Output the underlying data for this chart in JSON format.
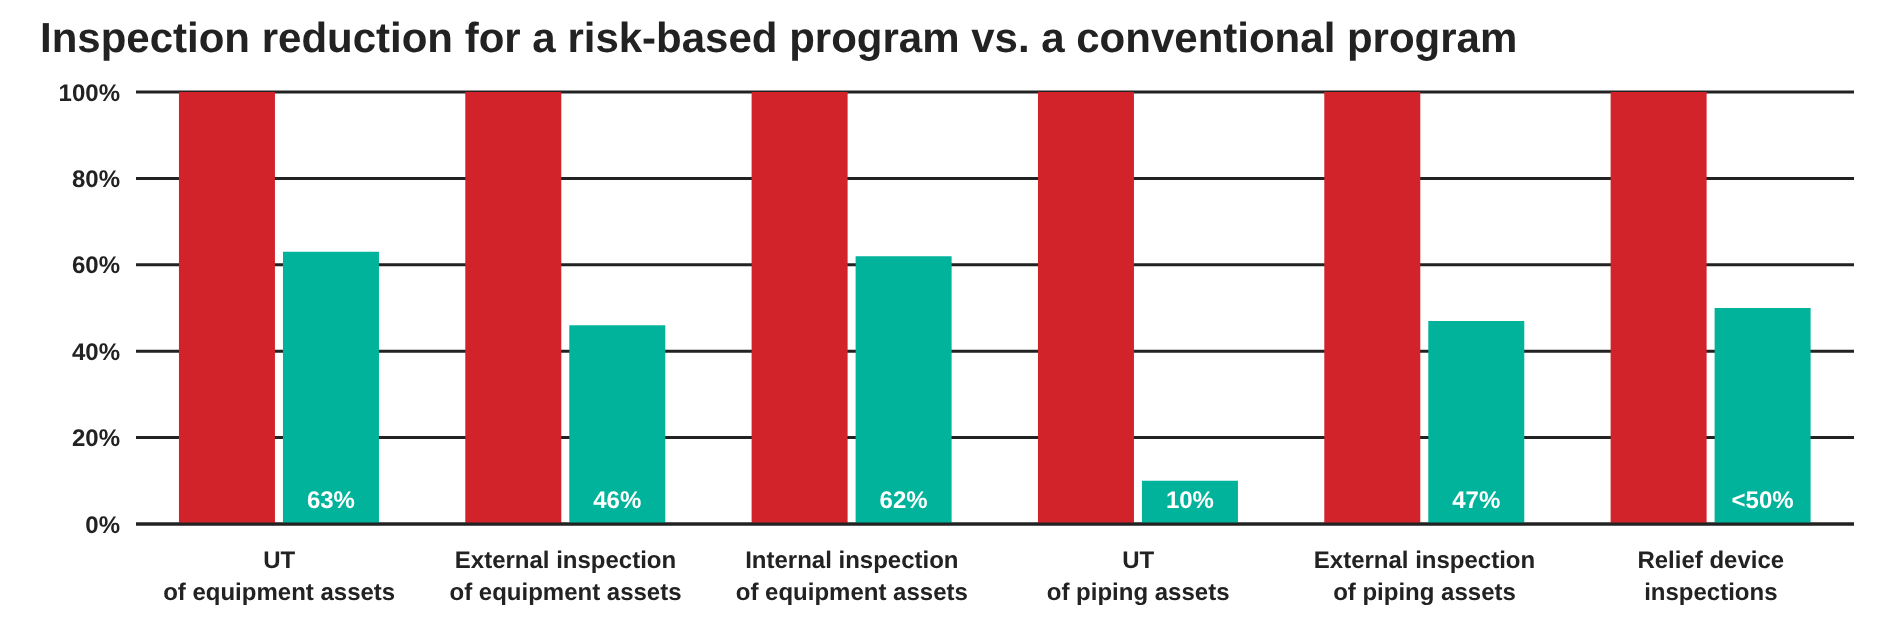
{
  "chart_data": {
    "type": "bar",
    "title": "Inspection reduction for a risk-based program vs. a conventional program",
    "categories": [
      "UT\nof equipment assets",
      "External inspection\nof equipment assets",
      "Internal inspection\nof equipment assets",
      "UT\nof piping assets",
      "External inspection\nof piping assets",
      "Relief device\ninspections"
    ],
    "series": [
      {
        "color": "#d2232a",
        "values": [
          100,
          100,
          100,
          100,
          100,
          100
        ]
      },
      {
        "color": "#00b39a",
        "values": [
          63,
          46,
          62,
          10,
          47,
          50
        ],
        "value_labels": [
          "63%",
          "46%",
          "62%",
          "10%",
          "47%",
          "<50%"
        ]
      }
    ],
    "ylim": [
      0,
      100
    ],
    "yticks": [
      {
        "value": 0,
        "label": "0%"
      },
      {
        "value": 20,
        "label": "20%"
      },
      {
        "value": 40,
        "label": "40%"
      },
      {
        "value": 60,
        "label": "60%"
      },
      {
        "value": 80,
        "label": "80%"
      },
      {
        "value": 100,
        "label": "100%"
      }
    ],
    "grid": "y"
  }
}
